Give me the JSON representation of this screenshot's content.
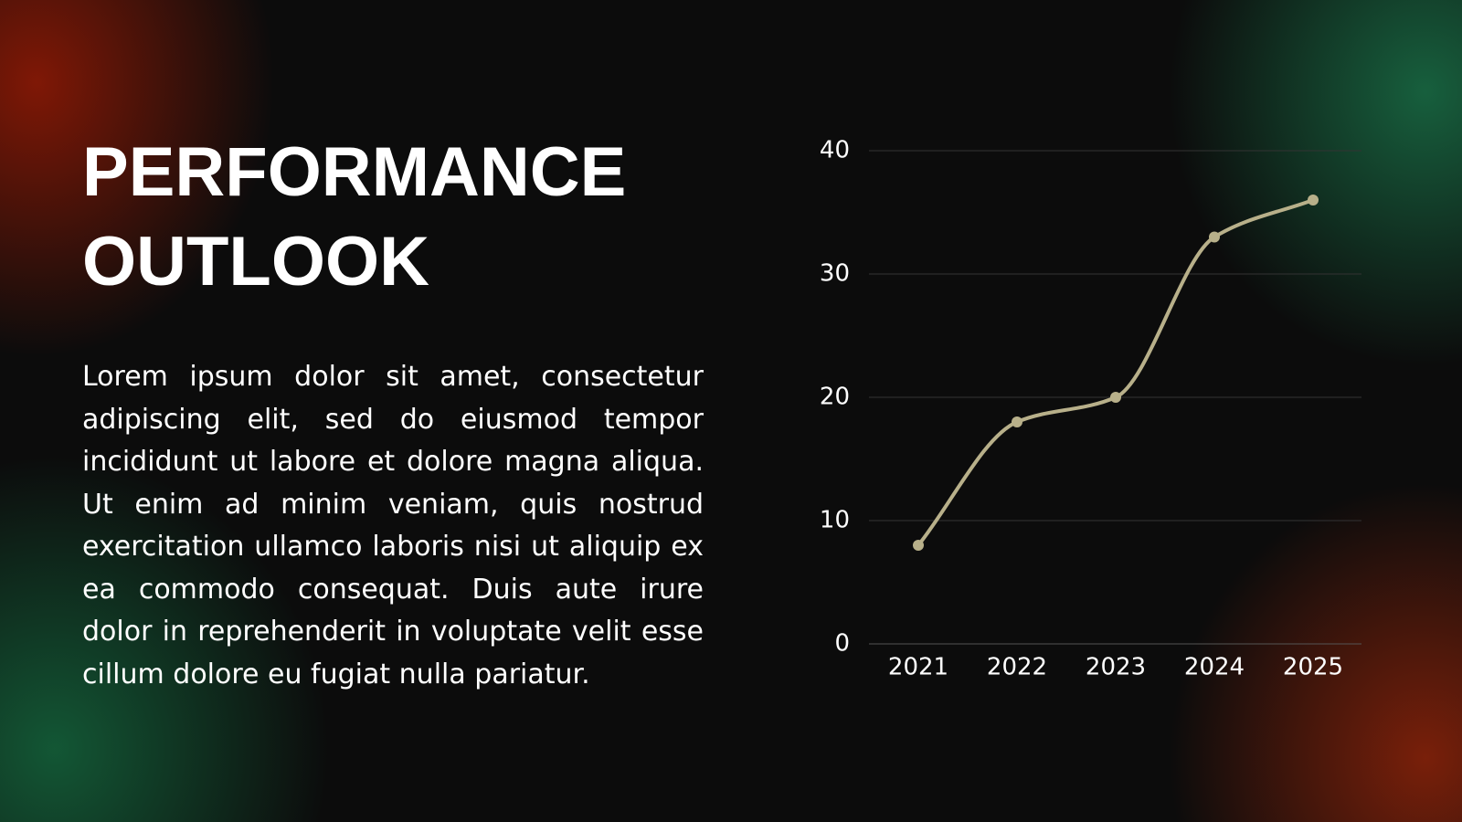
{
  "chart_data": {
    "type": "line",
    "title": "PERFORMANCE OUTLOOK",
    "body": "Lorem ipsum dolor sit amet, consectetur adipiscing elit, sed do eiusmod tempor incididunt ut labore et dolore magna aliqua. Ut enim ad minim veniam, quis nostrud exercitation ullamco laboris nisi ut aliquip ex ea commodo consequat. Duis aute irure dolor in reprehenderit in voluptate velit esse cillum dolore eu fugiat nulla pariatur.",
    "categories": [
      "2021",
      "2022",
      "2023",
      "2024",
      "2025"
    ],
    "values": [
      8,
      18,
      20,
      33,
      36
    ],
    "color": "#b8b08a",
    "ylim": [
      0,
      40
    ],
    "yticks": [
      0,
      10,
      20,
      30,
      40
    ],
    "grid": true
  }
}
